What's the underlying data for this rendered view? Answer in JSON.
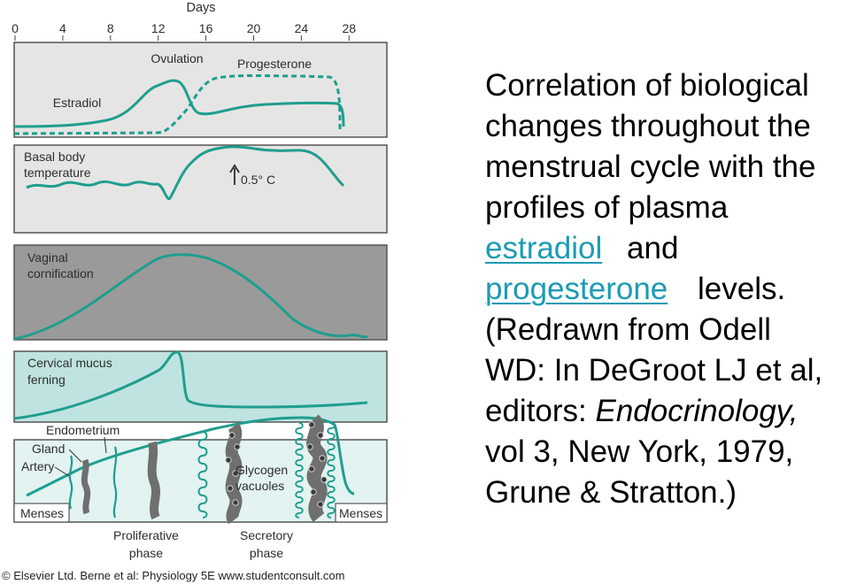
{
  "figure": {
    "days_axis": {
      "title": "Days",
      "ticks": [
        "0",
        "4",
        "8",
        "12",
        "16",
        "20",
        "24",
        "28"
      ]
    },
    "panels": {
      "hormones": {
        "ovulation_label": "Ovulation",
        "progesterone_label": "Progesterone",
        "estradiol_label": "Estradiol"
      },
      "temperature": {
        "label_line1": "Basal body",
        "label_line2": "temperature",
        "delta_label": "0.5° C"
      },
      "vaginal": {
        "label_line1": "Vaginal",
        "label_line2": "cornification"
      },
      "cervical": {
        "label_line1": "Cervical mucus",
        "label_line2": "ferning"
      },
      "endometrium": {
        "endometrium_label": "Endometrium",
        "gland_label": "Gland",
        "artery_label": "Artery",
        "glycogen_line1": "Glycogen",
        "glycogen_line2": "vacuoles",
        "menses_left": "Menses",
        "menses_right": "Menses"
      }
    },
    "phases": {
      "proliferative_line1": "Proliferative",
      "proliferative_line2": "phase",
      "secretory_line1": "Secretory",
      "secretory_line2": "phase"
    },
    "copyright": "© Elsevier Ltd. Berne et al: Physiology 5E www.studentconsult.com",
    "colors": {
      "curve": "#1f9e8e",
      "panel_light": "#e5e5e5",
      "panel_dark": "#9a9a9a",
      "panel_teal": "#bfe3e0",
      "panel_pale": "#e2f3f1"
    }
  },
  "caption": {
    "line1": "Correlation of biological",
    "line2": "changes throughout the",
    "line3": "menstrual cycle with the",
    "line4": "profiles of plasma",
    "link_estradiol": "estradiol",
    "and_text": "and",
    "link_progesterone": "progesterone",
    "levels_text": "levels.",
    "line7": "(Redrawn from Odell",
    "line8": "WD: In DeGroot LJ et al,",
    "line9_pre": "editors: ",
    "line9_italic": "Endocrinology,",
    "line10": "vol 3, New York, 1979,",
    "line11": "Grune & Stratton.)"
  }
}
